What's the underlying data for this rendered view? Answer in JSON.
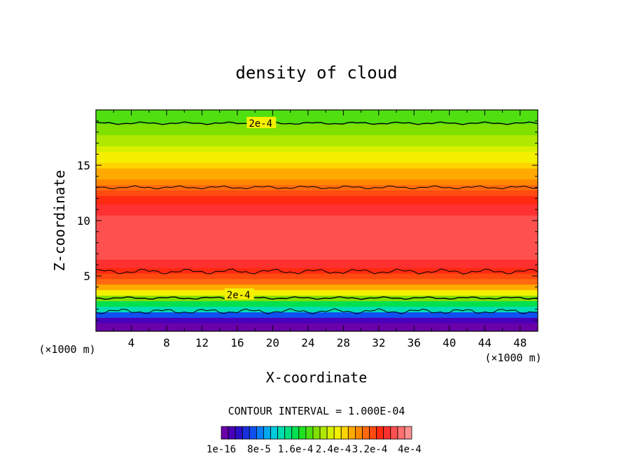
{
  "chart_data": {
    "type": "contour",
    "title": "density of cloud",
    "xlabel": "X-coordinate",
    "ylabel": "Z-coordinate",
    "x_unit": "(×1000 m)",
    "y_unit": "(×1000 m)",
    "xlim": [
      0,
      50
    ],
    "ylim": [
      0,
      20
    ],
    "x_ticks": [
      4,
      8,
      12,
      16,
      20,
      24,
      28,
      32,
      36,
      40,
      44,
      48
    ],
    "y_ticks": [
      5,
      10,
      15
    ],
    "contour_labels": [
      {
        "text": "2e-4",
        "x": 17.3,
        "z": 18.8
      },
      {
        "text": "2e-4",
        "x": 14.8,
        "z": 3.3
      }
    ],
    "contour_interval_text": "CONTOUR INTERVAL = 1.000E-04",
    "colorbar": {
      "tick_labels": [
        "1e-16",
        "8e-5",
        "1.6e-4",
        "2.4e-4",
        "3.2e-4",
        "4e-4"
      ],
      "colors": [
        "#6a00a8",
        "#4a00b8",
        "#2a10c8",
        "#1a30dd",
        "#1050f0",
        "#0a7cf4",
        "#00a8f0",
        "#00ccdd",
        "#00ddb0",
        "#00e080",
        "#00e050",
        "#20e020",
        "#50e010",
        "#80e000",
        "#b0e800",
        "#d8f000",
        "#f4f000",
        "#ffd400",
        "#ffaa00",
        "#ff8800",
        "#ff6a10",
        "#ff4a10",
        "#ff2a10",
        "#ff3030",
        "#ff5050",
        "#ff7070",
        "#ff9090"
      ]
    },
    "profile_z": [
      0.5,
      1.0,
      1.5,
      2.0,
      2.5,
      3.0,
      3.5,
      4.0,
      4.5,
      5.0,
      5.5,
      6.0,
      7.0,
      8.0,
      9.0,
      10.0,
      11.0,
      12.0,
      12.5,
      13.0,
      13.5,
      14.0,
      14.5,
      15.0,
      15.5,
      16.0,
      16.5,
      17.0,
      17.5,
      18.0,
      18.5,
      19.0,
      19.5,
      20.0
    ],
    "profile_value": [
      1e-06,
      2e-05,
      7e-05,
      0.00012,
      0.00016,
      0.0002,
      0.00024,
      0.00028,
      0.0003,
      0.00032,
      0.00034,
      0.00035,
      0.00036,
      0.00037,
      0.00037,
      0.00036,
      0.00035,
      0.00034,
      0.00032,
      0.0003,
      0.00029,
      0.00028,
      0.00027,
      0.00026,
      0.00025,
      0.00024,
      0.00023,
      0.00022,
      0.00021,
      0.0002,
      0.0002,
      0.00019,
      0.00019,
      0.00018
    ]
  }
}
